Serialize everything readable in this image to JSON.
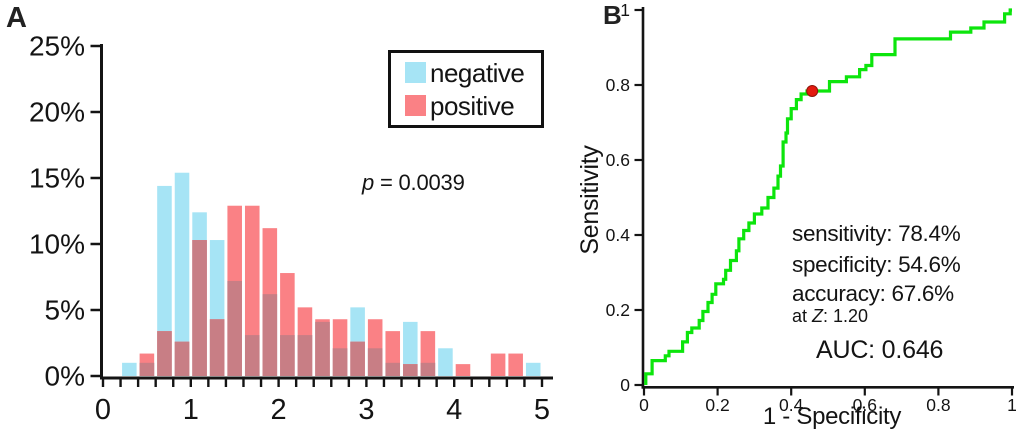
{
  "figure": {
    "background": "#ffffff",
    "panel_a": {
      "label": "A",
      "legend": {
        "items": [
          {
            "label": "negative",
            "color": "#a6e4f5"
          },
          {
            "label": "positive",
            "color": "#fa8185"
          }
        ]
      },
      "p_annotation": {
        "italic_var": "p",
        "rest": " = 0.0039"
      }
    },
    "panel_b": {
      "label": "B",
      "ylabel": "Sensitivity",
      "xlabel": "1 - Specificity",
      "stats": {
        "sensitivity": "sensitivity: 78.4%",
        "specificity": "specificity: 54.6%",
        "accuracy": "accuracy: 67.6%",
        "at_z": {
          "prefix": "at ",
          "italic_var": "Z",
          "suffix": ": 1.20"
        },
        "auc": "AUC: 0.646"
      }
    }
  },
  "chart_data": [
    {
      "type": "bar",
      "panel": "A",
      "description": "overlapping percentage histogram of two groups",
      "bin_width": 0.2,
      "bin_left_edges": [
        0.2,
        0.4,
        0.6,
        0.8,
        1.0,
        1.2,
        1.4,
        1.6,
        1.8,
        2.0,
        2.2,
        2.4,
        2.6,
        2.8,
        3.0,
        3.2,
        3.4,
        3.6,
        3.8,
        4.0,
        4.2,
        4.4,
        4.6,
        4.8
      ],
      "series": [
        {
          "name": "negative",
          "color": "#a6e4f5",
          "values": [
            1.0,
            1.0,
            14.4,
            15.4,
            12.4,
            10.3,
            7.2,
            3.1,
            6.2,
            3.1,
            3.1,
            4.1,
            2.1,
            5.2,
            2.1,
            1.0,
            4.1,
            1.0,
            2.1,
            0,
            0,
            0,
            0,
            1.0
          ]
        },
        {
          "name": "positive",
          "color": "#fa8185",
          "values": [
            0,
            1.7,
            3.4,
            2.6,
            10.3,
            4.3,
            12.9,
            12.9,
            11.2,
            7.8,
            5.2,
            4.3,
            4.3,
            2.6,
            4.3,
            3.4,
            0.9,
            3.4,
            0,
            0.9,
            0,
            1.7,
            1.7,
            0
          ]
        }
      ],
      "overlap_color": "#c87e85",
      "xlim": [
        0,
        5
      ],
      "ylim": [
        0,
        25
      ],
      "y_ticks_percent": [
        0,
        5,
        10,
        15,
        20,
        25
      ],
      "y_tick_labels": [
        "0%",
        "5%",
        "10%",
        "15%",
        "20%",
        "25%"
      ],
      "x_ticks": [
        0,
        1,
        2,
        3,
        4,
        5
      ],
      "x_tick_labels": [
        "0",
        "1",
        "2",
        "3",
        "4",
        "5"
      ],
      "x_minor_tick_step": 0.2,
      "annotation": "p = 0.0039",
      "legend_position": "top-right",
      "grid": false
    },
    {
      "type": "line",
      "panel": "B",
      "description": "ROC step curve",
      "xlabel": "1 - Specificity",
      "ylabel": "Sensitivity",
      "xlim": [
        0,
        1
      ],
      "ylim": [
        0,
        1
      ],
      "x_ticks": [
        0,
        0.2,
        0.4,
        0.6,
        0.8,
        1
      ],
      "x_tick_labels": [
        "0",
        "0.2",
        "0.4",
        "0.6",
        "0.8",
        "1"
      ],
      "y_ticks": [
        0,
        0.2,
        0.4,
        0.6,
        0.8,
        1
      ],
      "y_tick_labels": [
        "0",
        "0.2",
        "0.4",
        "0.6",
        "0.8",
        "1"
      ],
      "line_color": "#0ce50c",
      "operating_point": {
        "x": 0.457,
        "y": 0.784,
        "color": "#e31a10"
      },
      "sensitivity_pct": 78.4,
      "specificity_pct": 54.6,
      "accuracy_pct": 67.6,
      "cutoff_z": 1.2,
      "auc": 0.646,
      "grid": false,
      "roc_points": [
        [
          0.005,
          0
        ],
        [
          0.005,
          0.03
        ],
        [
          0.022,
          0.03
        ],
        [
          0.022,
          0.065
        ],
        [
          0.058,
          0.065
        ],
        [
          0.058,
          0.078
        ],
        [
          0.068,
          0.078
        ],
        [
          0.068,
          0.09
        ],
        [
          0.105,
          0.09
        ],
        [
          0.105,
          0.115
        ],
        [
          0.118,
          0.115
        ],
        [
          0.118,
          0.14
        ],
        [
          0.13,
          0.14
        ],
        [
          0.13,
          0.152
        ],
        [
          0.15,
          0.152
        ],
        [
          0.15,
          0.172
        ],
        [
          0.16,
          0.172
        ],
        [
          0.16,
          0.196
        ],
        [
          0.174,
          0.196
        ],
        [
          0.174,
          0.22
        ],
        [
          0.185,
          0.22
        ],
        [
          0.185,
          0.242
        ],
        [
          0.195,
          0.242
        ],
        [
          0.195,
          0.27
        ],
        [
          0.216,
          0.27
        ],
        [
          0.216,
          0.282
        ],
        [
          0.222,
          0.282
        ],
        [
          0.222,
          0.306
        ],
        [
          0.235,
          0.306
        ],
        [
          0.235,
          0.332
        ],
        [
          0.251,
          0.332
        ],
        [
          0.251,
          0.358
        ],
        [
          0.258,
          0.358
        ],
        [
          0.258,
          0.39
        ],
        [
          0.271,
          0.39
        ],
        [
          0.271,
          0.412
        ],
        [
          0.285,
          0.412
        ],
        [
          0.285,
          0.432
        ],
        [
          0.3,
          0.432
        ],
        [
          0.3,
          0.456
        ],
        [
          0.32,
          0.456
        ],
        [
          0.32,
          0.472
        ],
        [
          0.337,
          0.472
        ],
        [
          0.337,
          0.5
        ],
        [
          0.353,
          0.5
        ],
        [
          0.353,
          0.525
        ],
        [
          0.364,
          0.525
        ],
        [
          0.364,
          0.557
        ],
        [
          0.371,
          0.557
        ],
        [
          0.371,
          0.584
        ],
        [
          0.378,
          0.584
        ],
        [
          0.378,
          0.648
        ],
        [
          0.386,
          0.648
        ],
        [
          0.386,
          0.672
        ],
        [
          0.39,
          0.672
        ],
        [
          0.39,
          0.71
        ],
        [
          0.4,
          0.71
        ],
        [
          0.4,
          0.737
        ],
        [
          0.414,
          0.737
        ],
        [
          0.414,
          0.761
        ],
        [
          0.427,
          0.761
        ],
        [
          0.427,
          0.776
        ],
        [
          0.443,
          0.776
        ],
        [
          0.443,
          0.784
        ],
        [
          0.457,
          0.784
        ],
        [
          0.504,
          0.784
        ],
        [
          0.504,
          0.809
        ],
        [
          0.55,
          0.809
        ],
        [
          0.55,
          0.822
        ],
        [
          0.586,
          0.822
        ],
        [
          0.586,
          0.841
        ],
        [
          0.603,
          0.841
        ],
        [
          0.603,
          0.852
        ],
        [
          0.619,
          0.852
        ],
        [
          0.619,
          0.881
        ],
        [
          0.682,
          0.881
        ],
        [
          0.682,
          0.923
        ],
        [
          0.833,
          0.923
        ],
        [
          0.833,
          0.941
        ],
        [
          0.888,
          0.941
        ],
        [
          0.888,
          0.952
        ],
        [
          0.924,
          0.952
        ],
        [
          0.924,
          0.968
        ],
        [
          0.98,
          0.968
        ],
        [
          0.98,
          0.99
        ],
        [
          0.995,
          0.99
        ],
        [
          0.995,
          1.0
        ],
        [
          1.0,
          1.0
        ]
      ]
    }
  ]
}
